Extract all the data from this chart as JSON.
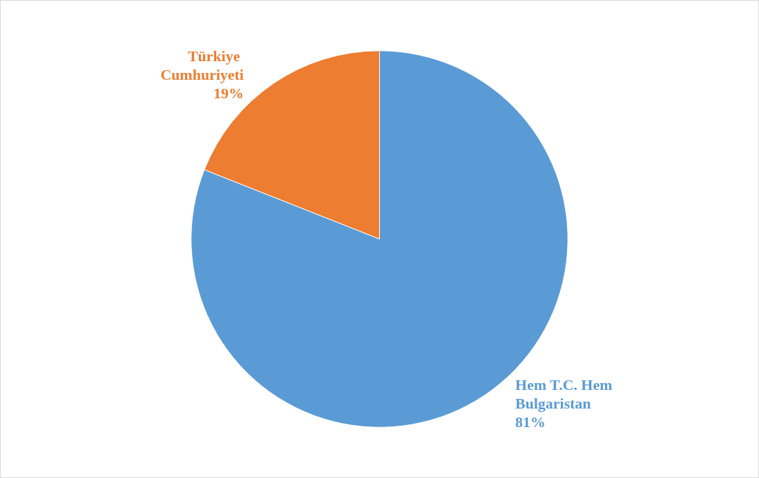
{
  "chart_data": {
    "type": "pie",
    "categories": [
      "Hem T.C. Hem Bulgaristan",
      "Türkiye Cumhuriyeti"
    ],
    "values": [
      81,
      19
    ],
    "colors": [
      "#5b9bd5",
      "#ed7d31"
    ],
    "value_labels": [
      "81%",
      "19%"
    ],
    "legend": false
  }
}
